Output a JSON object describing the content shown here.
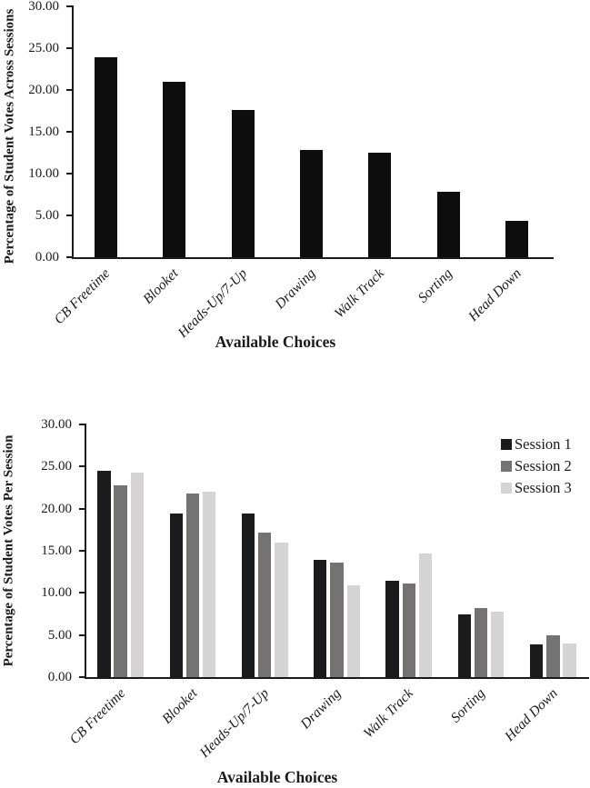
{
  "figure": {
    "background": "#ffffff",
    "axis_color": "#1a1a1a"
  },
  "chart_data": [
    {
      "type": "bar",
      "title": "",
      "categories": [
        "CB Freetime",
        "Blooket",
        "Heads-Up/7-Up",
        "Drawing",
        "Walk Track",
        "Sorting",
        "Head Down"
      ],
      "values": [
        23.9,
        21.0,
        17.6,
        12.8,
        12.5,
        7.8,
        4.4
      ],
      "bar_color": "#0d0d0d",
      "xlabel": "Available Choices",
      "ylabel": "Percentage of Student Votes Across Sessions",
      "ylim": [
        0,
        30
      ],
      "yticks": [
        "0.00",
        "5.00",
        "10.00",
        "15.00",
        "20.00",
        "25.00",
        "30.00"
      ],
      "grid": false,
      "legend_position": "none"
    },
    {
      "type": "bar",
      "title": "",
      "categories": [
        "CB Freetime",
        "Blooket",
        "Heads-Up/7-Up",
        "Drawing",
        "Walk Track",
        "Sorting",
        "Head Down"
      ],
      "series": [
        {
          "name": "Session 1",
          "color": "#1b1b1b",
          "values": [
            24.5,
            19.4,
            19.4,
            13.9,
            11.4,
            7.4,
            3.9
          ]
        },
        {
          "name": "Session 2",
          "color": "#757272",
          "values": [
            22.8,
            21.8,
            17.2,
            13.6,
            11.1,
            8.2,
            5.0
          ]
        },
        {
          "name": "Session 3",
          "color": "#d5d3d3",
          "values": [
            24.3,
            22.0,
            16.0,
            10.9,
            14.7,
            7.8,
            4.0
          ]
        }
      ],
      "xlabel": "Available Choices",
      "ylabel": "Percentage of Student Votes Per Session",
      "ylim": [
        0,
        30
      ],
      "yticks": [
        "0.00",
        "5.00",
        "10.00",
        "15.00",
        "20.00",
        "25.00",
        "30.00"
      ],
      "grid": false,
      "legend_position": "top-right"
    }
  ]
}
